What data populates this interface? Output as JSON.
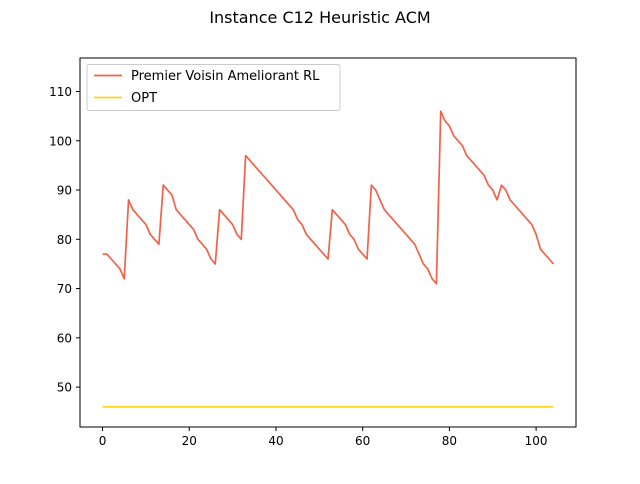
{
  "chart_data": {
    "type": "line",
    "title": "Instance C12 Heuristic ACM",
    "xlabel": "",
    "ylabel": "",
    "xlim": [
      -5.2,
      109.2
    ],
    "ylim": [
      41.9,
      116.8
    ],
    "xticks": [
      0,
      20,
      40,
      60,
      80,
      100
    ],
    "yticks": [
      50,
      60,
      70,
      80,
      90,
      100,
      110
    ],
    "legend_position": "upper-left",
    "grid": false,
    "series": [
      {
        "name": "Premier Voisin Ameliorant RL",
        "color": "#f0624a",
        "x": [
          0,
          1,
          2,
          3,
          4,
          5,
          6,
          7,
          8,
          9,
          10,
          11,
          12,
          13,
          14,
          15,
          16,
          17,
          18,
          19,
          20,
          21,
          22,
          23,
          24,
          25,
          26,
          27,
          28,
          29,
          30,
          31,
          32,
          33,
          34,
          35,
          36,
          37,
          38,
          39,
          40,
          41,
          42,
          43,
          44,
          45,
          46,
          47,
          48,
          49,
          50,
          51,
          52,
          53,
          54,
          55,
          56,
          57,
          58,
          59,
          60,
          61,
          62,
          63,
          64,
          65,
          66,
          67,
          68,
          69,
          70,
          71,
          72,
          73,
          74,
          75,
          76,
          77,
          78,
          79,
          80,
          81,
          82,
          83,
          84,
          85,
          86,
          87,
          88,
          89,
          90,
          91,
          92,
          93,
          94,
          95,
          96,
          97,
          98,
          99,
          100,
          101,
          102,
          103,
          104
        ],
        "y": [
          77,
          77,
          76,
          75,
          74,
          72,
          88,
          86,
          85,
          84,
          83,
          81,
          80,
          79,
          91,
          90,
          89,
          86,
          85,
          84,
          83,
          82,
          80,
          79,
          78,
          76,
          75,
          86,
          85,
          84,
          83,
          81,
          80,
          97,
          96,
          95,
          94,
          93,
          92,
          91,
          90,
          89,
          88,
          87,
          86,
          84,
          83,
          81,
          80,
          79,
          78,
          77,
          76,
          86,
          85,
          84,
          83,
          81,
          80,
          78,
          77,
          76,
          91,
          90,
          88,
          86,
          85,
          84,
          83,
          82,
          81,
          80,
          79,
          77,
          75,
          74,
          72,
          71,
          106,
          104,
          103,
          101,
          100,
          99,
          97,
          96,
          95,
          94,
          93,
          91,
          90,
          88,
          91,
          90,
          88,
          87,
          86,
          85,
          84,
          83,
          81,
          78,
          77,
          76,
          75
        ]
      },
      {
        "name": "OPT",
        "color": "#ffd21f",
        "x": [
          0,
          104
        ],
        "y": [
          46,
          46
        ]
      }
    ]
  }
}
